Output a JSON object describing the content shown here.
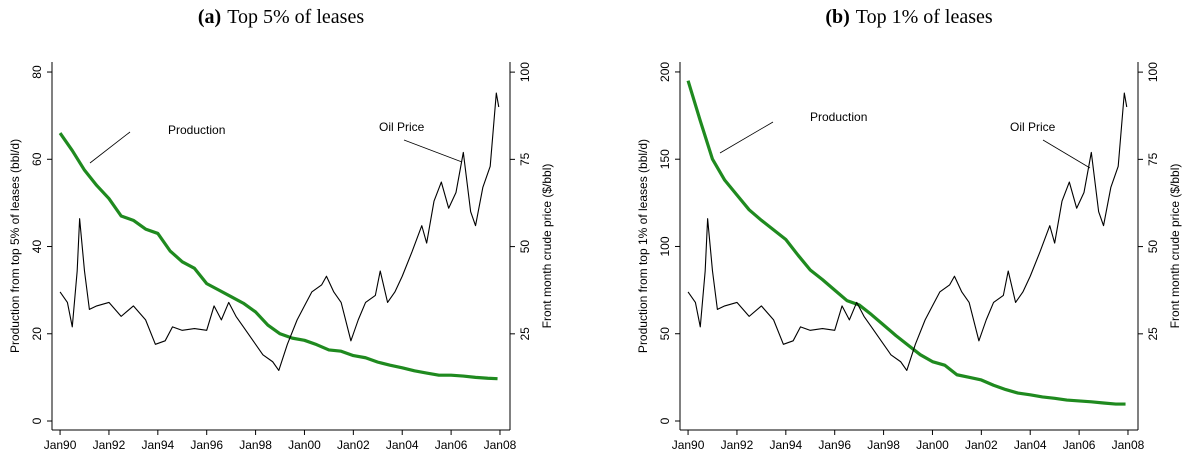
{
  "chart_data": [
    {
      "type": "line",
      "label": "(a)",
      "title": "Top 5% of leases",
      "ylabel": "Production from top 5% of leases (bbl/d)",
      "y2label": "Front month crude price ($/bbl)",
      "xlim": [
        1989.67,
        2008.41
      ],
      "ylim": [
        -2.06,
        82.3
      ],
      "y2lim": [
        -2.56,
        102.9
      ],
      "xticks": [
        {
          "value": 1990,
          "label": "Jan90"
        },
        {
          "value": 1992,
          "label": "Jan92"
        },
        {
          "value": 1994,
          "label": "Jan94"
        },
        {
          "value": 1996,
          "label": "Jan96"
        },
        {
          "value": 1998,
          "label": "Jan98"
        },
        {
          "value": 2000,
          "label": "Jan00"
        },
        {
          "value": 2002,
          "label": "Jan02"
        },
        {
          "value": 2004,
          "label": "Jan04"
        },
        {
          "value": 2006,
          "label": "Jan06"
        },
        {
          "value": 2008,
          "label": "Jan08"
        }
      ],
      "yticks": [
        0,
        20,
        40,
        60,
        80
      ],
      "y2ticks": [
        25,
        50,
        75,
        100
      ],
      "series": [
        {
          "name": "Production",
          "color": "#1f8a1f",
          "axis": "y",
          "x": [
            1990,
            1990.5,
            1991,
            1991.5,
            1992,
            1992.5,
            1993,
            1993.5,
            1994,
            1994.5,
            1995,
            1995.5,
            1996,
            1996.5,
            1997,
            1997.5,
            1998,
            1998.5,
            1999,
            1999.5,
            2000,
            2000.5,
            2001,
            2001.5,
            2002,
            2002.5,
            2003,
            2003.5,
            2004,
            2004.5,
            2005,
            2005.5,
            2006,
            2006.5,
            2007,
            2007.5,
            2007.9
          ],
          "values": [
            66,
            62,
            57.5,
            54,
            51,
            47,
            46,
            44,
            43,
            39,
            36.5,
            35,
            31.5,
            30,
            28.5,
            27,
            25,
            22,
            20,
            19,
            18.5,
            17.5,
            16.3,
            16,
            15,
            14.5,
            13.5,
            12.8,
            12.2,
            11.5,
            11,
            10.5,
            10.5,
            10.3,
            10,
            9.8,
            9.7
          ]
        },
        {
          "name": "Oil Price",
          "color": "#000000",
          "axis": "y2",
          "x": [
            1990,
            1990.3,
            1990.5,
            1990.7,
            1990.8,
            1991,
            1991.2,
            1991.5,
            1992,
            1992.5,
            1993,
            1993.5,
            1993.9,
            1994.3,
            1994.6,
            1995,
            1995.5,
            1996,
            1996.3,
            1996.6,
            1996.9,
            1997.2,
            1997.5,
            1997.9,
            1998.3,
            1998.7,
            1998.95,
            1999.3,
            1999.7,
            2000,
            2000.3,
            2000.7,
            2000.9,
            2001.2,
            2001.5,
            2001.9,
            2002.2,
            2002.5,
            2002.9,
            2003.1,
            2003.4,
            2003.7,
            2004,
            2004.4,
            2004.8,
            2005,
            2005.3,
            2005.6,
            2005.9,
            2006.2,
            2006.5,
            2006.8,
            2007,
            2007.3,
            2007.6,
            2007.85,
            2007.95
          ],
          "values": [
            37,
            34,
            27,
            43,
            58,
            43,
            32,
            33,
            34,
            30,
            33,
            29,
            22,
            23,
            27,
            26,
            26.5,
            26,
            33,
            29,
            34,
            30,
            27,
            23,
            19,
            17,
            14.5,
            22,
            29,
            33,
            37,
            39,
            41.5,
            37,
            34,
            23,
            29,
            34,
            36,
            43,
            34,
            37,
            41.5,
            48.5,
            56,
            51,
            63,
            68.5,
            61,
            65.5,
            77,
            60,
            56,
            67,
            73,
            94,
            90
          ]
        }
      ]
    },
    {
      "type": "line",
      "label": "(b)",
      "title": "Top 1% of leases",
      "ylabel": "Production from top 1% of leases (bbl/d)",
      "y2label": "Front month crude price ($/bbl)",
      "xlim": [
        1989.67,
        2008.41
      ],
      "ylim": [
        -5.16,
        205.7
      ],
      "y2lim": [
        -2.56,
        102.9
      ],
      "xticks": [
        {
          "value": 1990,
          "label": "Jan90"
        },
        {
          "value": 1992,
          "label": "Jan92"
        },
        {
          "value": 1994,
          "label": "Jan94"
        },
        {
          "value": 1996,
          "label": "Jan96"
        },
        {
          "value": 1998,
          "label": "Jan98"
        },
        {
          "value": 2000,
          "label": "Jan00"
        },
        {
          "value": 2002,
          "label": "Jan02"
        },
        {
          "value": 2004,
          "label": "Jan04"
        },
        {
          "value": 2006,
          "label": "Jan06"
        },
        {
          "value": 2008,
          "label": "Jan08"
        }
      ],
      "yticks": [
        0,
        50,
        100,
        150,
        200
      ],
      "y2ticks": [
        25,
        50,
        75,
        100
      ],
      "series": [
        {
          "name": "Production",
          "color": "#1f8a1f",
          "axis": "y",
          "x": [
            1990,
            1990.5,
            1991,
            1991.5,
            1992,
            1992.5,
            1993,
            1993.5,
            1994,
            1994.5,
            1995,
            1995.5,
            1996,
            1996.5,
            1997,
            1997.5,
            1998,
            1998.5,
            1999,
            1999.5,
            2000,
            2000.5,
            2001,
            2001.5,
            2002,
            2002.5,
            2003,
            2003.5,
            2004,
            2004.5,
            2005,
            2005.5,
            2006,
            2006.5,
            2007,
            2007.5,
            2007.9
          ],
          "values": [
            195,
            172,
            150,
            138,
            129.5,
            121,
            115,
            109.5,
            104,
            95,
            86.5,
            81,
            75,
            69,
            66.5,
            61,
            55,
            49,
            43.5,
            38,
            34,
            32,
            26.5,
            25,
            23.5,
            20.5,
            18,
            16,
            15,
            13.8,
            13,
            12,
            11.5,
            11,
            10.3,
            9.7,
            9.7
          ]
        },
        {
          "name": "Oil Price",
          "color": "#000000",
          "axis": "y2",
          "x": [
            1990,
            1990.3,
            1990.5,
            1990.7,
            1990.8,
            1991,
            1991.2,
            1991.5,
            1992,
            1992.5,
            1993,
            1993.5,
            1993.9,
            1994.3,
            1994.6,
            1995,
            1995.5,
            1996,
            1996.3,
            1996.6,
            1996.9,
            1997.2,
            1997.5,
            1997.9,
            1998.3,
            1998.7,
            1998.95,
            1999.3,
            1999.7,
            2000,
            2000.3,
            2000.7,
            2000.9,
            2001.2,
            2001.5,
            2001.9,
            2002.2,
            2002.5,
            2002.9,
            2003.1,
            2003.4,
            2003.7,
            2004,
            2004.4,
            2004.8,
            2005,
            2005.3,
            2005.6,
            2005.9,
            2006.2,
            2006.5,
            2006.8,
            2007,
            2007.3,
            2007.6,
            2007.85,
            2007.95
          ],
          "values": [
            37,
            34,
            27,
            43,
            58,
            43,
            32,
            33,
            34,
            30,
            33,
            29,
            22,
            23,
            27,
            26,
            26.5,
            26,
            33,
            29,
            34,
            30,
            27,
            23,
            19,
            17,
            14.5,
            22,
            29,
            33,
            37,
            39,
            41.5,
            37,
            34,
            23,
            29,
            34,
            36,
            43,
            34,
            37,
            41.5,
            48.5,
            56,
            51,
            63,
            68.5,
            61,
            65.5,
            77,
            60,
            56,
            67,
            73,
            94,
            90
          ]
        }
      ]
    }
  ]
}
